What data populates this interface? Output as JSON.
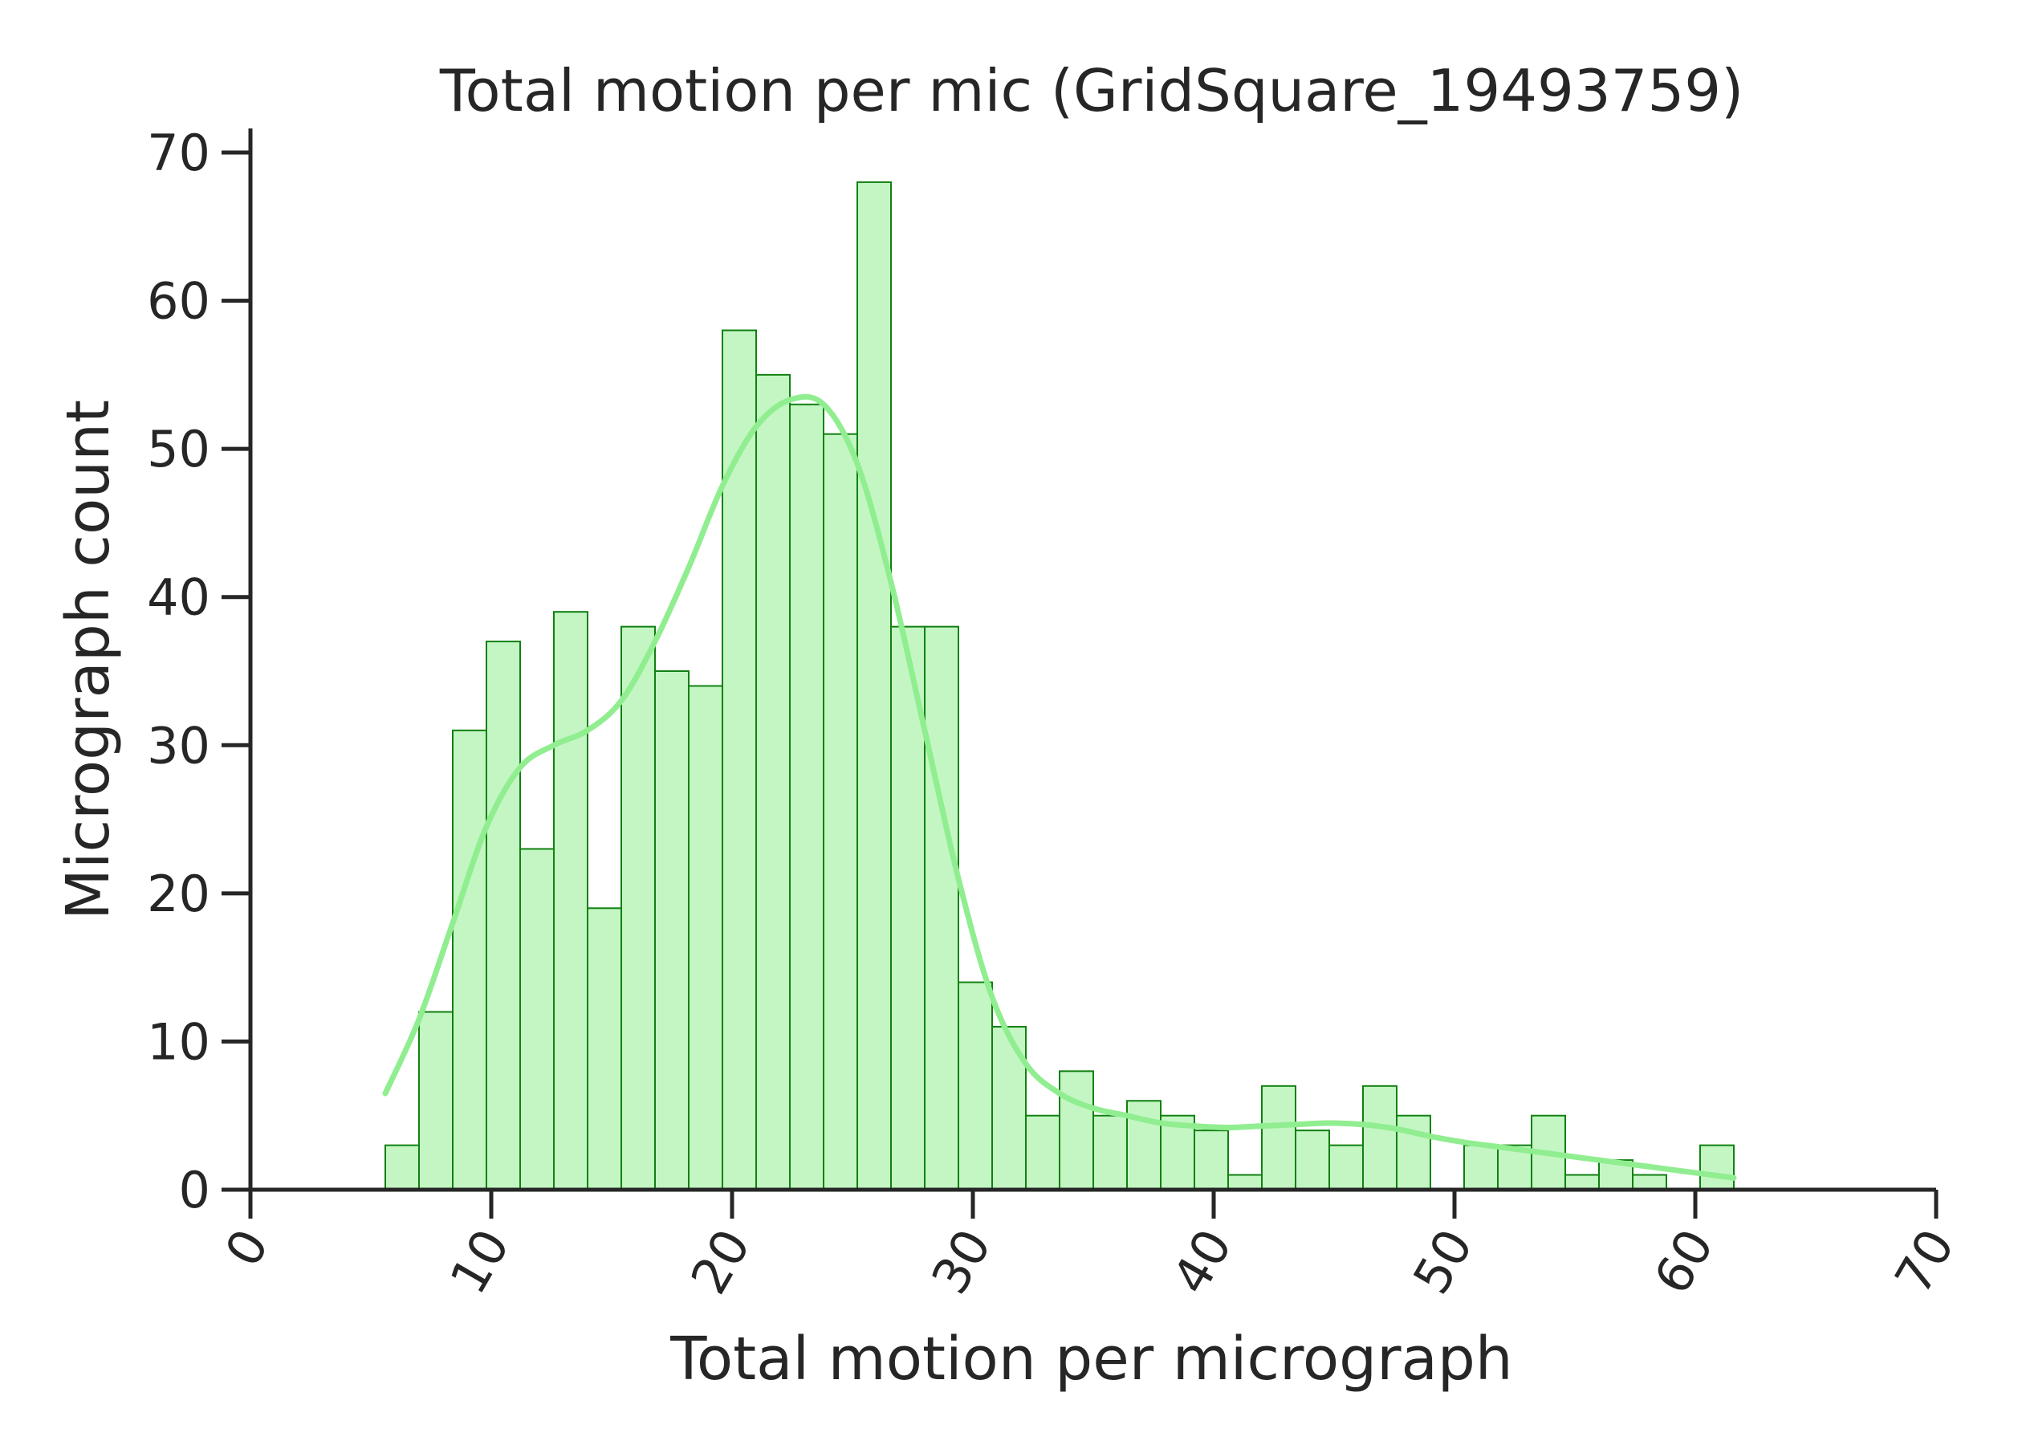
{
  "chart_data": {
    "type": "bar",
    "title": "Total motion per mic (GridSquare_19493759)",
    "xlabel": "Total motion per micrograph",
    "ylabel": "Micrograph count",
    "xlim": [
      0,
      70
    ],
    "ylim": [
      0,
      70
    ],
    "xticks": [
      0,
      10,
      20,
      30,
      40,
      50,
      60,
      70
    ],
    "yticks": [
      0,
      10,
      20,
      30,
      40,
      50,
      60,
      70
    ],
    "grid": false,
    "colors": {
      "bar_fill": "#c3f6c3",
      "bar_edge": "#118011",
      "kde_line": "#90ee90"
    },
    "bin_edges": [
      5.6,
      7.0,
      8.4,
      9.8,
      11.2,
      12.6,
      14.0,
      15.4,
      16.8,
      18.2,
      19.6,
      21.0,
      22.4,
      23.8,
      25.2,
      26.6,
      28.0,
      29.4,
      30.8,
      32.2,
      33.6,
      35.0,
      36.4,
      37.8,
      39.2,
      40.6,
      42.0,
      43.4,
      44.8,
      46.2,
      47.6,
      49.0,
      50.4,
      51.8,
      53.2,
      54.6,
      56.0,
      57.4,
      58.8,
      60.2,
      61.6
    ],
    "counts": [
      3,
      12,
      31,
      37,
      23,
      39,
      19,
      38,
      35,
      34,
      58,
      55,
      53,
      51,
      68,
      38,
      38,
      14,
      11,
      5,
      8,
      5,
      6,
      5,
      4,
      1,
      7,
      4,
      3,
      7,
      5,
      0,
      3,
      3,
      5,
      1,
      2,
      1,
      0,
      3
    ],
    "kde": {
      "x": [
        5.6,
        7.0,
        8.4,
        9.8,
        11.2,
        12.6,
        14.0,
        15.4,
        16.8,
        18.2,
        19.6,
        21.0,
        22.4,
        23.8,
        25.2,
        26.6,
        28.0,
        29.4,
        30.8,
        32.2,
        33.6,
        35.0,
        36.4,
        37.8,
        39.2,
        40.6,
        42.0,
        43.4,
        44.8,
        46.2,
        47.6,
        49.0,
        50.4,
        51.8,
        53.2,
        54.6,
        56.0,
        57.4,
        58.8,
        60.2,
        61.6
      ],
      "y": [
        6.5,
        11.5,
        18.0,
        24.5,
        28.5,
        30.0,
        31.0,
        33.0,
        37.0,
        42.0,
        47.5,
        51.5,
        53.3,
        53.0,
        49.0,
        41.0,
        31.0,
        21.0,
        13.0,
        8.5,
        6.5,
        5.5,
        5.0,
        4.5,
        4.3,
        4.2,
        4.3,
        4.4,
        4.5,
        4.4,
        4.1,
        3.6,
        3.2,
        2.9,
        2.6,
        2.3,
        2.0,
        1.7,
        1.4,
        1.1,
        0.8
      ]
    }
  }
}
